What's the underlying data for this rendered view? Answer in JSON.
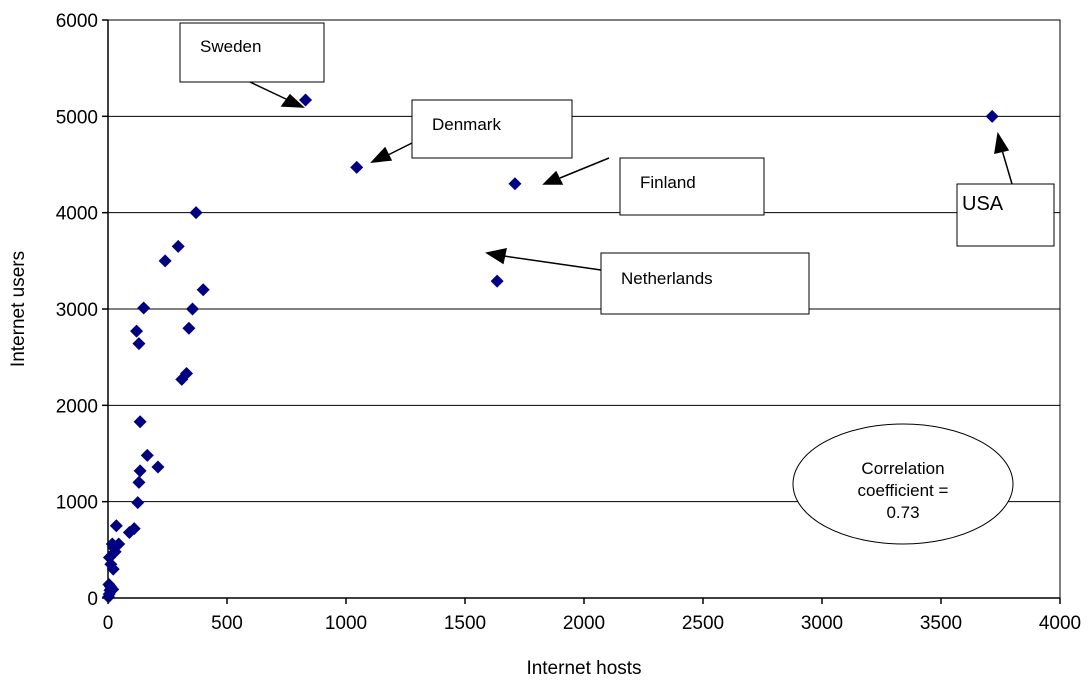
{
  "chart_data": {
    "type": "scatter",
    "xlabel": "Internet hosts",
    "ylabel": "Internet users",
    "xlim": [
      0,
      4000
    ],
    "ylim": [
      0,
      6000
    ],
    "xticks": [
      "0",
      "500",
      "1000",
      "1500",
      "2000",
      "2500",
      "3000",
      "3500",
      "4000"
    ],
    "yticks": [
      "0",
      "1000",
      "2000",
      "3000",
      "4000",
      "5000",
      "6000"
    ],
    "grid": "horizontal",
    "marker_color": "#000080",
    "points": [
      [
        2,
        10
      ],
      [
        5,
        40
      ],
      [
        8,
        80
      ],
      [
        4,
        140
      ],
      [
        10,
        120
      ],
      [
        15,
        100
      ],
      [
        20,
        90
      ],
      [
        6,
        420
      ],
      [
        12,
        350
      ],
      [
        18,
        560
      ],
      [
        22,
        300
      ],
      [
        30,
        480
      ],
      [
        25,
        520
      ],
      [
        35,
        750
      ],
      [
        45,
        560
      ],
      [
        90,
        680
      ],
      [
        110,
        720
      ],
      [
        125,
        990
      ],
      [
        130,
        1200
      ],
      [
        135,
        1320
      ],
      [
        165,
        1480
      ],
      [
        210,
        1360
      ],
      [
        135,
        1830
      ],
      [
        130,
        2640
      ],
      [
        120,
        2770
      ],
      [
        150,
        3010
      ],
      [
        310,
        2270
      ],
      [
        330,
        2330
      ],
      [
        340,
        2800
      ],
      [
        355,
        3000
      ],
      [
        400,
        3200
      ],
      [
        240,
        3500
      ],
      [
        295,
        3650
      ],
      [
        370,
        4000
      ],
      [
        830,
        5170
      ],
      [
        1045,
        4470
      ],
      [
        1710,
        4300
      ],
      [
        1635,
        3290
      ],
      [
        3715,
        5000
      ]
    ],
    "labels": {
      "sweden": "Sweden",
      "denmark": "Denmark",
      "finland": "Finland",
      "netherlands": "Netherlands",
      "usa": "USA"
    },
    "annotation": {
      "line1": "Correlation",
      "line2": "coefficient =",
      "line3": "0.73"
    }
  }
}
